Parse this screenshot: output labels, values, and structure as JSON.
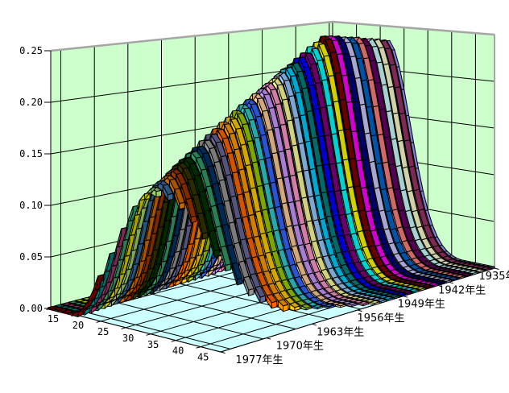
{
  "chart": {
    "kind": "excel-3d-ribbon-line-chart",
    "title": "",
    "background_color": "#FFFFFF",
    "wall_color": "#CCFFCC",
    "floor_color": "#CCFFFF",
    "gridline_color": "#000000",
    "outer_edge_color": "#A6A6A6",
    "value_axis": {
      "min": 0,
      "max": 0.25,
      "step": 0.05,
      "tick_labels": [
        "0.00",
        "0.05",
        "0.10",
        "0.15",
        "0.20",
        "0.25"
      ]
    },
    "age_axis": {
      "min": 15,
      "max": 49,
      "label_step": 5,
      "tick_labels": [
        "15",
        "20",
        "25",
        "30",
        "35",
        "40",
        "45"
      ],
      "wall_grid_ages": [
        20,
        25,
        30,
        35,
        40,
        45
      ]
    },
    "cohort_axis": {
      "front_year": 1977,
      "back_year": 1935,
      "tick_labels": [
        {
          "year": 1977,
          "label": "1977年生"
        },
        {
          "year": 1970,
          "label": "1970年生"
        },
        {
          "year": 1963,
          "label": "1963年生"
        },
        {
          "year": 1956,
          "label": "1956年生"
        },
        {
          "year": 1949,
          "label": "1949年生"
        },
        {
          "year": 1942,
          "label": "1942年生"
        },
        {
          "year": 1935,
          "label": "1935年生"
        }
      ],
      "grid_depth_offsets": [
        1.5,
        6.5,
        11.5,
        16.5,
        21.5,
        26.5,
        31.5,
        36.5,
        41.5
      ]
    }
  },
  "chart_data": {
    "type": "line",
    "subtype": "3d-ribbon",
    "xlabel": "age",
    "ylabel": "",
    "x_range": [
      15,
      49
    ],
    "ylim": [
      0,
      0.25
    ],
    "curve_model": {
      "shape": "asymmetric-gaussian",
      "sigma_left": 4.8,
      "sigma_right": 6.8,
      "tail_min_value": 0.0015
    },
    "series": [
      {
        "name": "1935年生",
        "year": 1935,
        "color": "#9999FF",
        "peak_age": 26.5,
        "peak_value": 0.235,
        "last_age": 49
      },
      {
        "name": "1936年生",
        "year": 1936,
        "color": "#993366",
        "peak_age": 26.6,
        "peak_value": 0.236,
        "last_age": 49
      },
      {
        "name": "1937年生",
        "year": 1937,
        "color": "#FFFFCC",
        "peak_age": 26.6,
        "peak_value": 0.238,
        "last_age": 49
      },
      {
        "name": "1938年生",
        "year": 1938,
        "color": "#CCFFFF",
        "peak_age": 26.7,
        "peak_value": 0.239,
        "last_age": 49
      },
      {
        "name": "1939年生",
        "year": 1939,
        "color": "#660066",
        "peak_age": 26.8,
        "peak_value": 0.24,
        "last_age": 49
      },
      {
        "name": "1940年生",
        "year": 1940,
        "color": "#FF8080",
        "peak_age": 26.9,
        "peak_value": 0.242,
        "last_age": 49
      },
      {
        "name": "1941年生",
        "year": 1941,
        "color": "#0066CC",
        "peak_age": 26.9,
        "peak_value": 0.243,
        "last_age": 49
      },
      {
        "name": "1942年生",
        "year": 1942,
        "color": "#CCCCFF",
        "peak_age": 27.0,
        "peak_value": 0.244,
        "last_age": 49
      },
      {
        "name": "1943年生",
        "year": 1943,
        "color": "#000080",
        "peak_age": 27.1,
        "peak_value": 0.246,
        "last_age": 49
      },
      {
        "name": "1944年生",
        "year": 1944,
        "color": "#FF00FF",
        "peak_age": 27.1,
        "peak_value": 0.247,
        "last_age": 49
      },
      {
        "name": "1945年生",
        "year": 1945,
        "color": "#800000",
        "peak_age": 27.2,
        "peak_value": 0.248,
        "last_age": 49
      },
      {
        "name": "1946年生",
        "year": 1946,
        "color": "#FFFF00",
        "peak_age": 27.3,
        "peak_value": 0.243,
        "last_age": 49
      },
      {
        "name": "1947年生",
        "year": 1947,
        "color": "#00FFFF",
        "peak_age": 27.3,
        "peak_value": 0.239,
        "last_age": 49
      },
      {
        "name": "1948年生",
        "year": 1948,
        "color": "#800080",
        "peak_age": 27.4,
        "peak_value": 0.234,
        "last_age": 49
      },
      {
        "name": "1949年生",
        "year": 1949,
        "color": "#0000FF",
        "peak_age": 27.5,
        "peak_value": 0.23,
        "last_age": 49
      },
      {
        "name": "1950年生",
        "year": 1950,
        "color": "#008080",
        "peak_age": 27.6,
        "peak_value": 0.225,
        "last_age": 49
      },
      {
        "name": "1951年生",
        "year": 1951,
        "color": "#00CCFF",
        "peak_age": 27.6,
        "peak_value": 0.221,
        "last_age": 49
      },
      {
        "name": "1952年生",
        "year": 1952,
        "color": "#99CCFF",
        "peak_age": 27.7,
        "peak_value": 0.216,
        "last_age": 49
      },
      {
        "name": "1953年生",
        "year": 1953,
        "color": "#FFFF99",
        "peak_age": 27.8,
        "peak_value": 0.211,
        "last_age": 49
      },
      {
        "name": "1954年生",
        "year": 1954,
        "color": "#FF99CC",
        "peak_age": 27.8,
        "peak_value": 0.207,
        "last_age": 48
      },
      {
        "name": "1955年生",
        "year": 1955,
        "color": "#CC99FF",
        "peak_age": 27.9,
        "peak_value": 0.202,
        "last_age": 47
      },
      {
        "name": "1956年生",
        "year": 1956,
        "color": "#FFCC99",
        "peak_age": 28.0,
        "peak_value": 0.198,
        "last_age": 46
      },
      {
        "name": "1957年生",
        "year": 1957,
        "color": "#3366FF",
        "peak_age": 28.0,
        "peak_value": 0.193,
        "last_age": 45
      },
      {
        "name": "1958年生",
        "year": 1958,
        "color": "#33CCCC",
        "peak_age": 28.1,
        "peak_value": 0.189,
        "last_age": 44
      },
      {
        "name": "1959年生",
        "year": 1959,
        "color": "#99CC00",
        "peak_age": 28.2,
        "peak_value": 0.184,
        "last_age": 43
      },
      {
        "name": "1960年生",
        "year": 1960,
        "color": "#FFCC00",
        "peak_age": 28.3,
        "peak_value": 0.179,
        "last_age": 42
      },
      {
        "name": "1961年生",
        "year": 1961,
        "color": "#FF9900",
        "peak_age": 28.3,
        "peak_value": 0.175,
        "last_age": 41
      },
      {
        "name": "1962年生",
        "year": 1962,
        "color": "#FF6600",
        "peak_age": 28.4,
        "peak_value": 0.17,
        "last_age": 40
      },
      {
        "name": "1963年生",
        "year": 1963,
        "color": "#666699",
        "peak_age": 28.5,
        "peak_value": 0.166,
        "last_age": 39
      },
      {
        "name": "1964年生",
        "year": 1964,
        "color": "#969696",
        "peak_age": 28.5,
        "peak_value": 0.161,
        "last_age": 38
      },
      {
        "name": "1965年生",
        "year": 1965,
        "color": "#003366",
        "peak_age": 28.6,
        "peak_value": 0.156,
        "last_age": 37
      },
      {
        "name": "1966年生",
        "year": 1966,
        "color": "#339966",
        "peak_age": 28.7,
        "peak_value": 0.152,
        "last_age": 36
      },
      {
        "name": "1967年生",
        "year": 1967,
        "color": "#003300",
        "peak_age": 28.7,
        "peak_value": 0.147,
        "last_age": 35
      },
      {
        "name": "1968年生",
        "year": 1968,
        "color": "#333300",
        "peak_age": 28.8,
        "peak_value": 0.143,
        "last_age": 34
      },
      {
        "name": "1969年生",
        "year": 1969,
        "color": "#993300",
        "peak_age": 28.9,
        "peak_value": 0.138,
        "last_age": 33
      },
      {
        "name": "1970年生",
        "year": 1970,
        "color": "#CC6600",
        "peak_age": 29.0,
        "peak_value": 0.133,
        "last_age": 32
      },
      {
        "name": "1971年生",
        "year": 1971,
        "color": "#336699",
        "peak_age": 29.0,
        "peak_value": 0.129,
        "last_age": 31
      },
      {
        "name": "1972年生",
        "year": 1972,
        "color": "#99CC66",
        "peak_age": 29.1,
        "peak_value": 0.124,
        "last_age": 30
      },
      {
        "name": "1973年生",
        "year": 1973,
        "color": "#CCCC00",
        "peak_age": 29.2,
        "peak_value": 0.12,
        "last_age": 29
      },
      {
        "name": "1974年生",
        "year": 1974,
        "color": "#339966",
        "peak_age": 29.2,
        "peak_value": 0.115,
        "last_age": 28
      },
      {
        "name": "1975年生",
        "year": 1975,
        "color": "#993366",
        "peak_age": 29.3,
        "peak_value": 0.11,
        "last_age": 27
      },
      {
        "name": "1976年生",
        "year": 1976,
        "color": "#008080",
        "peak_age": 29.4,
        "peak_value": 0.106,
        "last_age": 26
      },
      {
        "name": "1977年生",
        "year": 1977,
        "color": "#800000",
        "peak_age": 29.4,
        "peak_value": 0.101,
        "last_age": 25
      }
    ]
  }
}
